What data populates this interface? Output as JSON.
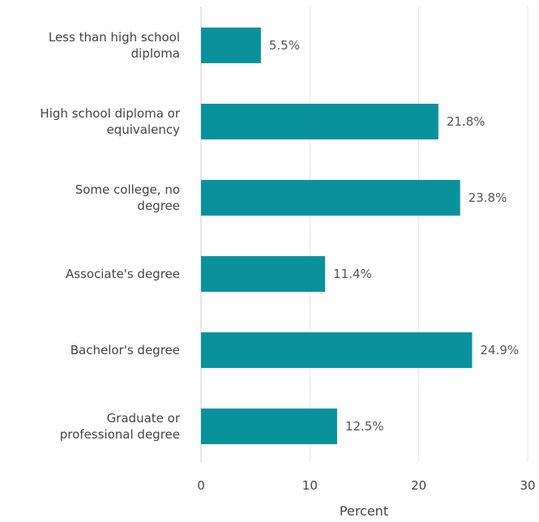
{
  "chart_data": {
    "type": "bar",
    "orientation": "horizontal",
    "categories": [
      [
        "Less than high school",
        "diploma"
      ],
      [
        "High school diploma or",
        "equivalency"
      ],
      [
        "Some college, no",
        "degree"
      ],
      [
        "Associate's degree"
      ],
      [
        "Bachelor's degree"
      ],
      [
        "Graduate or",
        "professional degree"
      ]
    ],
    "values": [
      5.5,
      21.8,
      23.8,
      11.4,
      24.9,
      12.5
    ],
    "value_labels": [
      "5.5%",
      "21.8%",
      "23.8%",
      "11.4%",
      "24.9%",
      "12.5%"
    ],
    "xlabel": "Percent",
    "xlim": [
      0,
      30
    ],
    "xticks": [
      "0",
      "10",
      "20",
      "30"
    ],
    "grid": true,
    "bar_color": "#0a929c"
  }
}
